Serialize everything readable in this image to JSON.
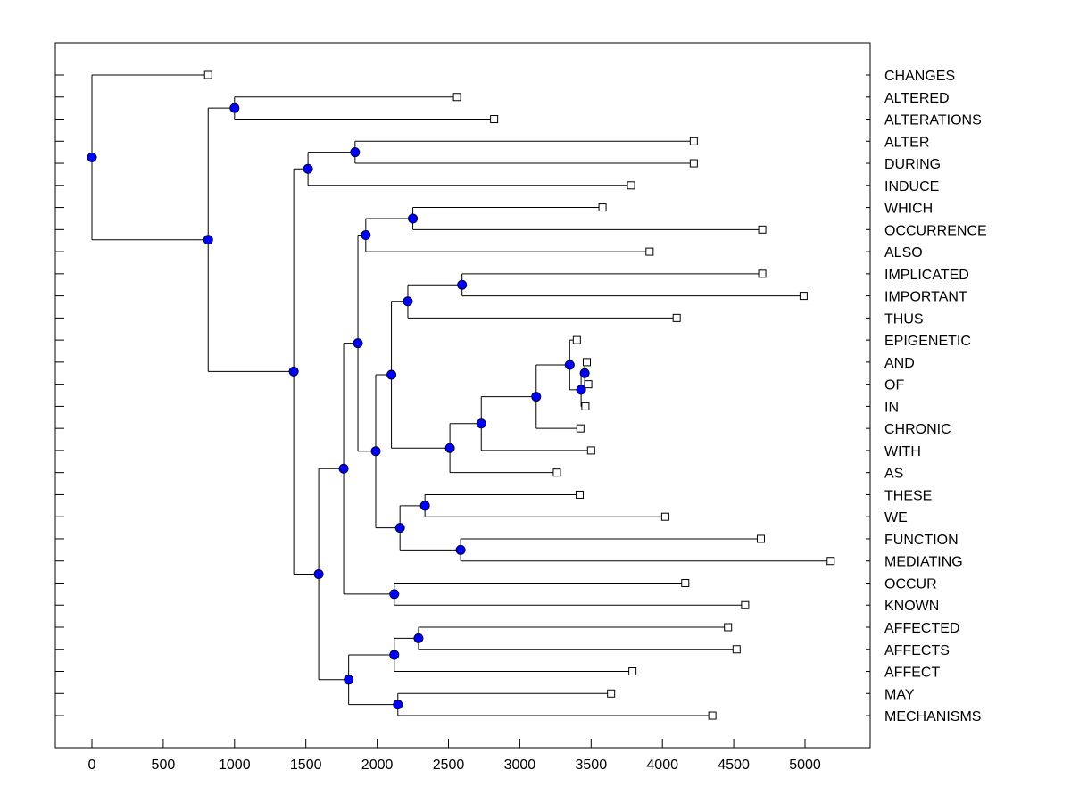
{
  "chart_data": {
    "type": "dendrogram",
    "title": "",
    "xlabel": "",
    "ylabel": "",
    "xlim": [
      -250,
      5450
    ],
    "x_ticks": [
      0,
      500,
      1000,
      1500,
      2000,
      2500,
      3000,
      3500,
      4000,
      4500,
      5000
    ],
    "x_tick_labels": [
      "0",
      "500",
      "1000",
      "1500",
      "2000",
      "2500",
      "3000",
      "3500",
      "4000",
      "4500",
      "5000"
    ],
    "grid": false,
    "colors": {
      "node_fill": "#0000ff",
      "line": "#000000",
      "leaf_fill": "#ffffff"
    },
    "leaves": [
      {
        "label": "CHANGES",
        "x": 815
      },
      {
        "label": "ALTERED",
        "x": 2560
      },
      {
        "label": "ALTERATIONS",
        "x": 2820
      },
      {
        "label": "ALTER",
        "x": 4220
      },
      {
        "label": "DURING",
        "x": 4220
      },
      {
        "label": "INDUCE",
        "x": 3780
      },
      {
        "label": "WHICH",
        "x": 3580
      },
      {
        "label": "OCCURRENCE",
        "x": 4700
      },
      {
        "label": "ALSO",
        "x": 3910
      },
      {
        "label": "IMPLICATED",
        "x": 4700
      },
      {
        "label": "IMPORTANT",
        "x": 4990
      },
      {
        "label": "THUS",
        "x": 4100
      },
      {
        "label": "EPIGENETIC",
        "x": 3400
      },
      {
        "label": "AND",
        "x": 3470
      },
      {
        "label": "OF",
        "x": 3480
      },
      {
        "label": "IN",
        "x": 3460
      },
      {
        "label": "CHRONIC",
        "x": 3425
      },
      {
        "label": "WITH",
        "x": 3500
      },
      {
        "label": "AS",
        "x": 3260
      },
      {
        "label": "THESE",
        "x": 3420
      },
      {
        "label": "WE",
        "x": 4020
      },
      {
        "label": "FUNCTION",
        "x": 4690
      },
      {
        "label": "MEDIATING",
        "x": 5180
      },
      {
        "label": "OCCUR",
        "x": 4160
      },
      {
        "label": "KNOWN",
        "x": 4580
      },
      {
        "label": "AFFECTED",
        "x": 4460
      },
      {
        "label": "AFFECTS",
        "x": 4520
      },
      {
        "label": "AFFECT",
        "x": 3790
      },
      {
        "label": "MAY",
        "x": 3640
      },
      {
        "label": "MECHANISMS",
        "x": 4350
      }
    ],
    "tree": {
      "x": 0,
      "children": [
        {
          "leaf": 0
        },
        {
          "x": 815,
          "children": [
            {
              "x": 1000,
              "children": [
                {
                  "leaf": 1
                },
                {
                  "leaf": 2
                }
              ]
            },
            {
              "x": 1415,
              "children": [
                {
                  "x": 1515,
                  "children": [
                    {
                      "x": 1845,
                      "children": [
                        {
                          "leaf": 3
                        },
                        {
                          "leaf": 4
                        }
                      ]
                    },
                    {
                      "leaf": 5
                    }
                  ]
                },
                {
                  "x": 1590,
                  "children": [
                    {
                      "x": 1765,
                      "children": [
                        {
                          "x": 1865,
                          "children": [
                            {
                              "x": 1920,
                              "children": [
                                {
                                  "x": 2250,
                                  "children": [
                                    {
                                      "leaf": 6
                                    },
                                    {
                                      "leaf": 7
                                    }
                                  ]
                                },
                                {
                                  "leaf": 8
                                }
                              ]
                            },
                            {
                              "x": 1990,
                              "children": [
                                {
                                  "x": 2100,
                                  "children": [
                                    {
                                      "x": 2215,
                                      "children": [
                                        {
                                          "x": 2595,
                                          "children": [
                                            {
                                              "leaf": 9
                                            },
                                            {
                                              "leaf": 10
                                            }
                                          ]
                                        },
                                        {
                                          "leaf": 11
                                        }
                                      ]
                                    },
                                    {
                                      "x": 2510,
                                      "children": [
                                        {
                                          "x": 2730,
                                          "children": [
                                            {
                                              "x": 3115,
                                              "children": [
                                                {
                                                  "x": 3350,
                                                  "children": [
                                                    {
                                                      "leaf": 12
                                                    },
                                                    {
                                                      "x": 3430,
                                                      "children": [
                                                        {
                                                          "x": 3455,
                                                          "children": [
                                                            {
                                                              "leaf": 13
                                                            },
                                                            {
                                                              "leaf": 14
                                                            }
                                                          ]
                                                        },
                                                        {
                                                          "leaf": 15
                                                        }
                                                      ]
                                                    }
                                                  ]
                                                },
                                                {
                                                  "leaf": 16
                                                }
                                              ]
                                            },
                                            {
                                              "leaf": 17
                                            }
                                          ]
                                        },
                                        {
                                          "leaf": 18
                                        }
                                      ]
                                    }
                                  ]
                                },
                                {
                                  "x": 2160,
                                  "children": [
                                    {
                                      "x": 2335,
                                      "children": [
                                        {
                                          "leaf": 19
                                        },
                                        {
                                          "leaf": 20
                                        }
                                      ]
                                    },
                                    {
                                      "x": 2585,
                                      "children": [
                                        {
                                          "leaf": 21
                                        },
                                        {
                                          "leaf": 22
                                        }
                                      ]
                                    }
                                  ]
                                }
                              ]
                            }
                          ]
                        },
                        {
                          "x": 2120,
                          "children": [
                            {
                              "leaf": 23
                            },
                            {
                              "leaf": 24
                            }
                          ]
                        }
                      ]
                    },
                    {
                      "x": 1800,
                      "children": [
                        {
                          "x": 2120,
                          "children": [
                            {
                              "x": 2290,
                              "children": [
                                {
                                  "leaf": 25
                                },
                                {
                                  "leaf": 26
                                }
                              ]
                            },
                            {
                              "leaf": 27
                            }
                          ]
                        },
                        {
                          "x": 2145,
                          "children": [
                            {
                              "leaf": 28
                            },
                            {
                              "leaf": 29
                            }
                          ]
                        }
                      ]
                    }
                  ]
                }
              ]
            }
          ]
        }
      ]
    }
  }
}
